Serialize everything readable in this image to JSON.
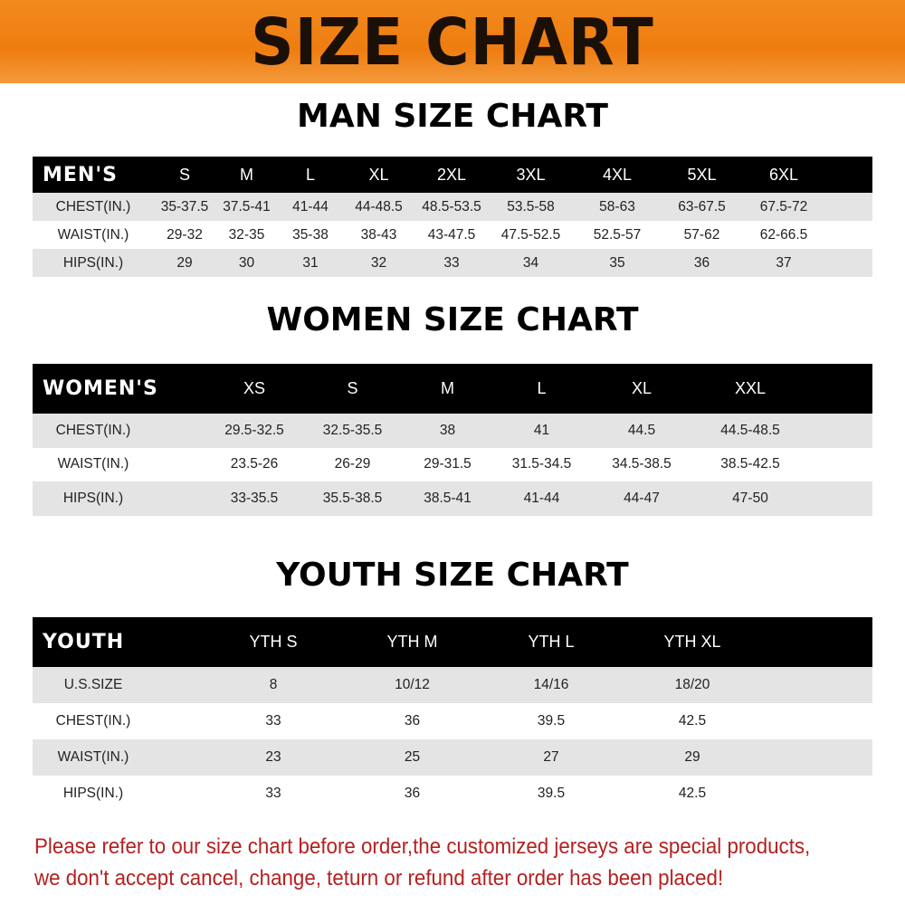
{
  "title": "SIZE CHART",
  "colors": {
    "banner": "#ef7d10",
    "header_row": "#000000",
    "stripe": "#e4e4e4",
    "notice": "#b42121"
  },
  "men": {
    "title": "MAN SIZE CHART",
    "header_label": "MEN'S",
    "sizes": [
      "S",
      "M",
      "L",
      "XL",
      "2XL",
      "3XL",
      "4XL",
      "5XL",
      "6XL"
    ],
    "rows": [
      {
        "label": "CHEST(IN.)",
        "values": [
          "35-37.5",
          "37.5-41",
          "41-44",
          "44-48.5",
          "48.5-53.5",
          "53.5-58",
          "58-63",
          "63-67.5",
          "67.5-72"
        ]
      },
      {
        "label": "WAIST(IN.)",
        "values": [
          "29-32",
          "32-35",
          "35-38",
          "38-43",
          "43-47.5",
          "47.5-52.5",
          "52.5-57",
          "57-62",
          "62-66.5"
        ]
      },
      {
        "label": "HIPS(IN.)",
        "values": [
          "29",
          "30",
          "31",
          "32",
          "33",
          "34",
          "35",
          "36",
          "37"
        ]
      }
    ]
  },
  "women": {
    "title": "WOMEN SIZE CHART",
    "header_label": "WOMEN'S",
    "sizes": [
      "XS",
      "S",
      "M",
      "L",
      "XL",
      "XXL"
    ],
    "rows": [
      {
        "label": "CHEST(IN.)",
        "values": [
          "29.5-32.5",
          "32.5-35.5",
          "38",
          "41",
          "44.5",
          "44.5-48.5"
        ]
      },
      {
        "label": "WAIST(IN.)",
        "values": [
          "23.5-26",
          "26-29",
          "29-31.5",
          "31.5-34.5",
          "34.5-38.5",
          "38.5-42.5"
        ]
      },
      {
        "label": "HIPS(IN.)",
        "values": [
          "33-35.5",
          "35.5-38.5",
          "38.5-41",
          "41-44",
          "44-47",
          "47-50"
        ]
      }
    ]
  },
  "youth": {
    "title": "YOUTH SIZE CHART",
    "header_label": "YOUTH",
    "sizes": [
      "YTH S",
      "YTH M",
      "YTH L",
      "YTH XL"
    ],
    "rows": [
      {
        "label": "U.S.SIZE",
        "values": [
          "8",
          "10/12",
          "14/16",
          "18/20"
        ]
      },
      {
        "label": "CHEST(IN.)",
        "values": [
          "33",
          "36",
          "39.5",
          "42.5"
        ]
      },
      {
        "label": "WAIST(IN.)",
        "values": [
          "23",
          "25",
          "27",
          "29"
        ]
      },
      {
        "label": "HIPS(IN.)",
        "values": [
          "33",
          "36",
          "39.5",
          "42.5"
        ]
      }
    ]
  },
  "notice": {
    "line1": "Please refer to our size chart before order,the customized jerseys are special products,",
    "line2": "we don't accept cancel, change, teturn or refund after order has been placed!"
  }
}
